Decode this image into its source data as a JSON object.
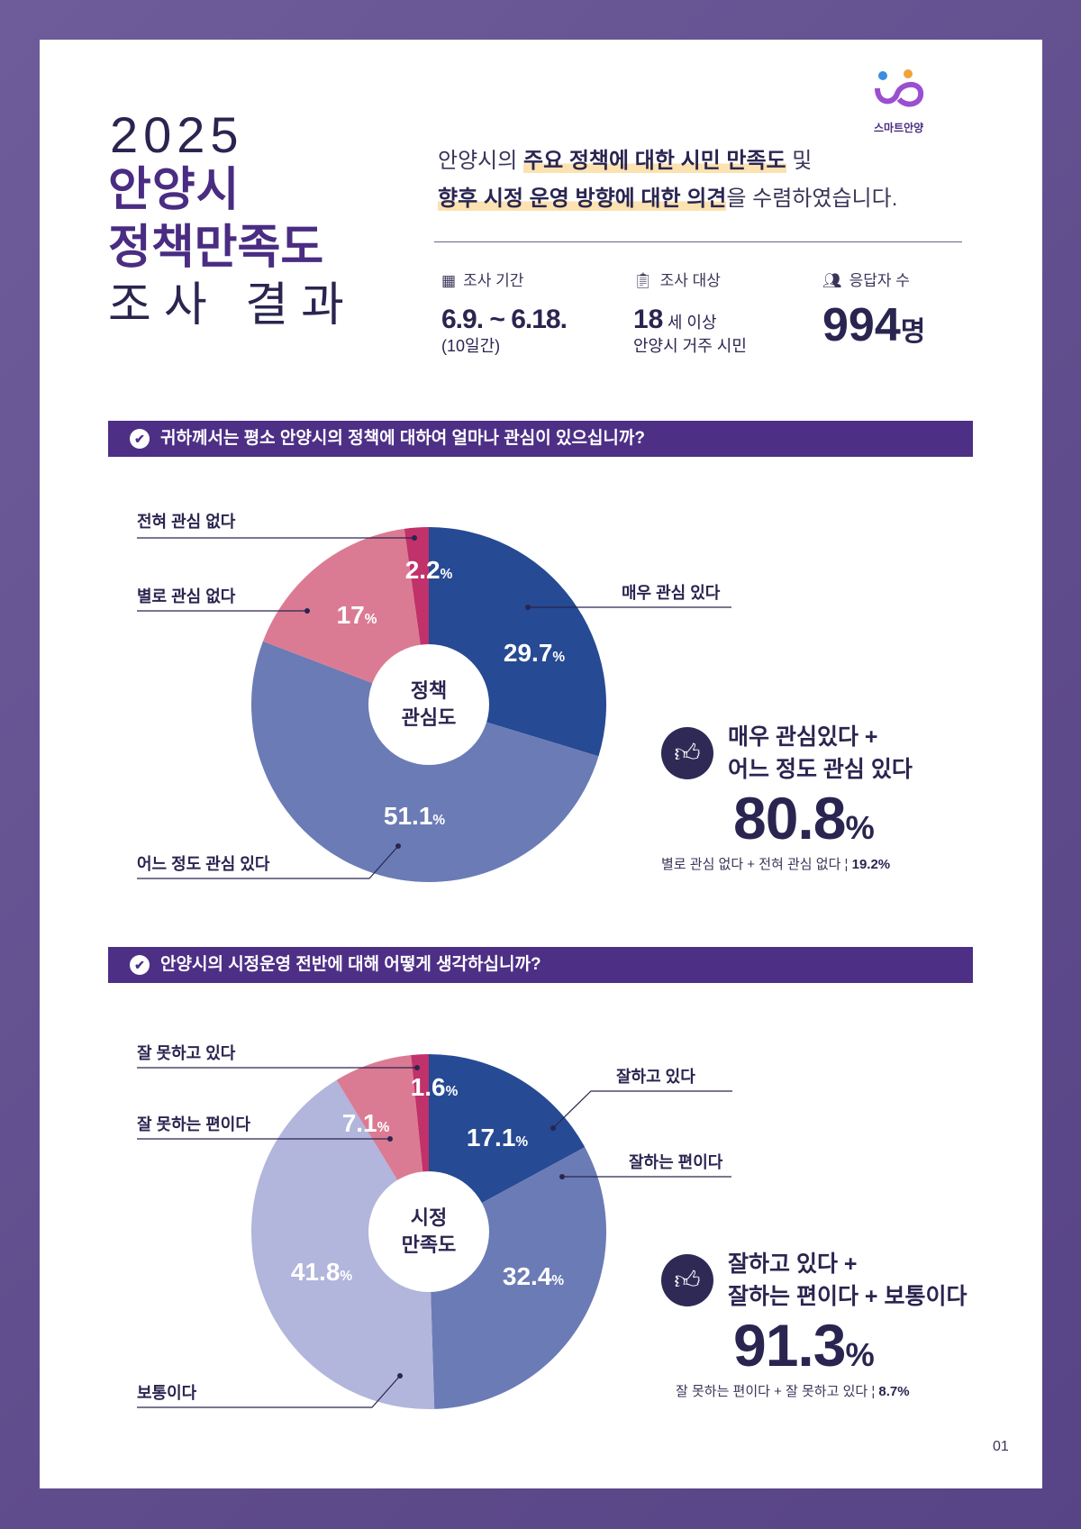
{
  "header": {
    "year": "2025",
    "city": "안양시",
    "subject": "정책만족도",
    "result": "조사 결과",
    "logo_text": "스마트안양",
    "intro_1_pre": "안양시의 ",
    "intro_1_hl": "주요 정책에 대한 시민 만족도",
    "intro_1_post": " 및",
    "intro_2_hl": "향후 시정 운영 방향에 대한 의견",
    "intro_2_post": "을 수렴하였습니다."
  },
  "info": {
    "period": {
      "icon": "calendar-icon",
      "label": "조사 기간",
      "value": "6.9. ~ 6.18.",
      "sub": "(10일간)"
    },
    "target": {
      "icon": "clipboard-icon",
      "label": "조사 대상",
      "value": "18",
      "value_suffix": "세 이상",
      "sub": "안양시 거주 시민"
    },
    "respondents": {
      "icon": "people-icon",
      "label": "응답자 수",
      "value": "994",
      "unit": "명"
    }
  },
  "colors": {
    "primary": "#4e2f86",
    "navy": "#264a93",
    "mid": "#6b7bb5",
    "light": "#b2b5dc",
    "pink": "#db7b93",
    "magenta": "#c1316a"
  },
  "q1": {
    "question": "귀하께서는 평소 안양시의 정책에 대하여 얼마나 관심이 있으십니까?",
    "summary_1": "매우 관심있다 +",
    "summary_2": "어느 정도 관심 있다",
    "summary_value": "80.8",
    "summary_unit": "%",
    "sub_text": "별로 관심 없다 + 전혀 관심 없다",
    "sub_value": "19.2%"
  },
  "q2": {
    "question": "안양시의 시정운영 전반에 대해 어떻게 생각하십니까?",
    "summary_1": "잘하고 있다 +",
    "summary_2": "잘하는 편이다 + 보통이다",
    "summary_value": "91.3",
    "summary_unit": "%",
    "sub_text": "잘 못하는 편이다 + 잘 못하고 있다",
    "sub_value": "8.7%"
  },
  "page_number": "01",
  "chart_data": [
    {
      "type": "pie",
      "title": "정책 관심도",
      "center_label_1": "정책",
      "center_label_2": "관심도",
      "categories": [
        "매우 관심 있다",
        "어느 정도 관심 있다",
        "별로 관심 없다",
        "전혀 관심 없다"
      ],
      "values": [
        29.7,
        51.1,
        17,
        2.2
      ],
      "value_labels": [
        "29.7",
        "51.1",
        "17",
        "2.2"
      ],
      "colors": [
        "#264a93",
        "#6b7bb5",
        "#db7b93",
        "#c1316a"
      ]
    },
    {
      "type": "pie",
      "title": "시정 만족도",
      "center_label_1": "시정",
      "center_label_2": "만족도",
      "categories": [
        "잘하고 있다",
        "잘하는 편이다",
        "보통이다",
        "잘 못하는 편이다",
        "잘 못하고 있다"
      ],
      "values": [
        17.1,
        32.4,
        41.8,
        7.1,
        1.6
      ],
      "value_labels": [
        "17.1",
        "32.4",
        "41.8",
        "7.1",
        "1.6"
      ],
      "colors": [
        "#264a93",
        "#6b7bb5",
        "#b2b5dc",
        "#db7b93",
        "#c1316a"
      ]
    }
  ]
}
